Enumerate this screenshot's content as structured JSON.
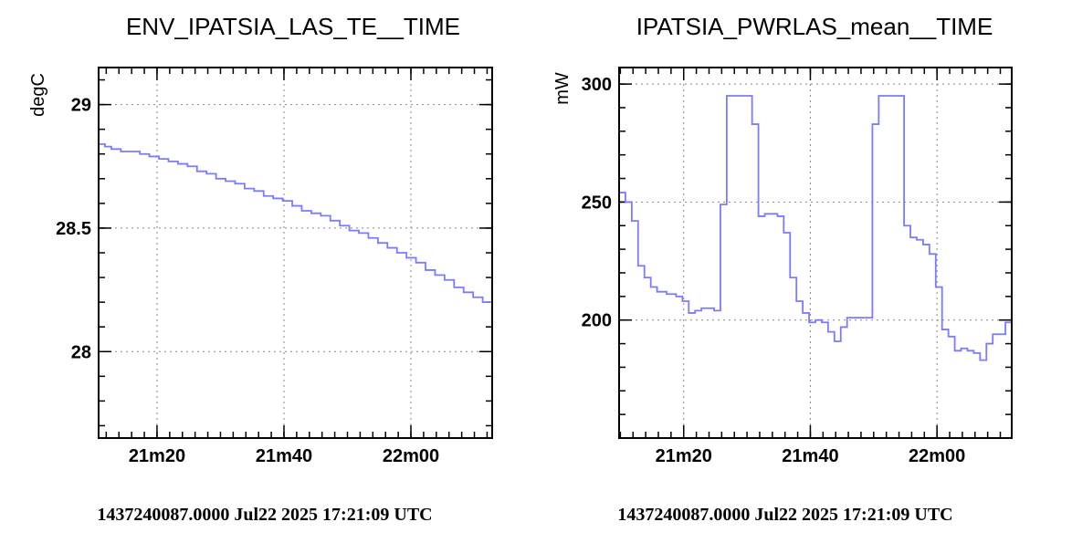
{
  "colors": {
    "series": "#7b7bff",
    "grid": "#888888",
    "frame": "#000000"
  },
  "chart_data": [
    {
      "type": "line",
      "step": true,
      "title": "ENV_IPATSIA_LAS_TE__TIME",
      "ylabel": "degC",
      "xlabel": "",
      "grid": true,
      "xlim": [
        80,
        142
      ],
      "ylim": [
        27.65,
        29.15
      ],
      "x_ticks": [
        {
          "value": 89.2,
          "label": "21m20"
        },
        {
          "value": 109.2,
          "label": "21m40"
        },
        {
          "value": 129.2,
          "label": "22m00"
        }
      ],
      "y_ticks": [
        {
          "value": 28.0,
          "label": "28"
        },
        {
          "value": 28.5,
          "label": "28.5"
        },
        {
          "value": 29.0,
          "label": "29"
        }
      ],
      "series": [
        {
          "x": [
            80,
            81,
            82,
            83.5,
            85,
            86.5,
            88,
            89.5,
            91,
            92.5,
            94,
            95.5,
            97,
            98.5,
            100,
            101.5,
            103,
            104.5,
            106,
            107.5,
            109,
            110.5,
            112,
            113.5,
            115,
            116.5,
            118,
            119.5,
            121,
            122.5,
            124,
            125.5,
            127,
            128.5,
            130,
            131.5,
            133,
            134.5,
            136,
            137.5,
            139,
            140.5,
            142
          ],
          "y": [
            28.84,
            28.83,
            28.82,
            28.81,
            28.81,
            28.8,
            28.79,
            28.78,
            28.77,
            28.76,
            28.75,
            28.73,
            28.72,
            28.7,
            28.69,
            28.68,
            28.66,
            28.65,
            28.63,
            28.62,
            28.61,
            28.59,
            28.57,
            28.56,
            28.55,
            28.53,
            28.51,
            28.49,
            28.48,
            28.46,
            28.44,
            28.42,
            28.4,
            28.38,
            28.36,
            28.33,
            28.31,
            28.29,
            28.26,
            28.24,
            28.22,
            28.2,
            28.18
          ]
        }
      ]
    },
    {
      "type": "line",
      "step": true,
      "title": "IPATSIA_PWRLAS_mean__TIME",
      "ylabel": "mW",
      "xlabel": "",
      "grid": true,
      "xlim": [
        80,
        142
      ],
      "ylim": [
        150,
        307
      ],
      "x_ticks": [
        {
          "value": 90.2,
          "label": "21m20"
        },
        {
          "value": 110.2,
          "label": "21m40"
        },
        {
          "value": 130.2,
          "label": "22m00"
        }
      ],
      "y_ticks": [
        {
          "value": 200,
          "label": "200"
        },
        {
          "value": 250,
          "label": "250"
        },
        {
          "value": 300,
          "label": "300"
        }
      ],
      "series": [
        {
          "x": [
            80,
            81,
            82,
            83,
            84,
            85,
            86,
            87.5,
            89,
            90,
            91,
            92,
            93,
            95,
            96,
            97,
            98,
            99,
            100,
            101,
            102,
            103,
            104,
            105,
            106,
            107,
            108,
            109,
            110,
            111,
            112,
            113,
            114,
            115,
            116,
            117,
            118,
            119,
            120,
            121,
            122,
            123,
            124,
            125,
            126,
            127,
            128,
            129,
            130,
            131,
            132,
            133,
            134,
            135,
            136,
            137,
            138,
            139,
            140,
            141,
            142
          ],
          "y": [
            254,
            250,
            242,
            223,
            218,
            214,
            212,
            211,
            210,
            208,
            203,
            204,
            205,
            204,
            249,
            295,
            295,
            295,
            295,
            283,
            244,
            245,
            245,
            244,
            237,
            218,
            208,
            203,
            199,
            200,
            199,
            195,
            191,
            197,
            201,
            201,
            201,
            201,
            283,
            295,
            295,
            295,
            295,
            240,
            235,
            234,
            232,
            228,
            214,
            196,
            193,
            187,
            188,
            187,
            186,
            183,
            190,
            194,
            194,
            199,
            289
          ]
        }
      ]
    }
  ],
  "footer": {
    "left": "1437240087.0000 Jul22 2025 17:21:09 UTC",
    "right": "1437240087.0000 Jul22 2025 17:21:09 UTC"
  }
}
